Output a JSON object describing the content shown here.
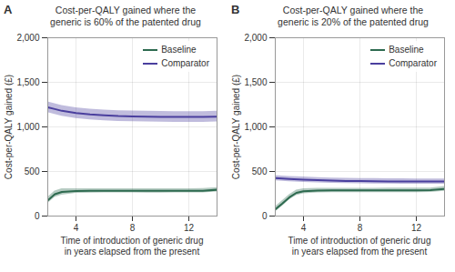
{
  "chart_data": [
    {
      "type": "line",
      "title": "Cost-per-QALY gained where the\ngeneric is 60% of the patented drug",
      "annotations": [
        "A"
      ],
      "xlabel": "Time of introduction of generic drug\nin years elapsed from the present",
      "ylabel": "Cost-per-QALY gained (£)",
      "series": [
        {
          "name": "Baseline",
          "color": "#2d6a4f",
          "x": [
            2,
            2.5,
            3,
            4,
            5,
            6,
            7,
            8,
            9,
            10,
            11,
            12,
            13,
            14
          ],
          "values": [
            175,
            245,
            270,
            280,
            282,
            283,
            283,
            283,
            282,
            282,
            283,
            283,
            284,
            295
          ],
          "lower": [
            140,
            210,
            235,
            255,
            258,
            259,
            259,
            259,
            258,
            258,
            259,
            259,
            260,
            270
          ],
          "upper": [
            210,
            280,
            305,
            305,
            306,
            307,
            307,
            307,
            306,
            306,
            307,
            307,
            308,
            320
          ]
        },
        {
          "name": "Comparator",
          "color": "#4a3f9e",
          "x": [
            2,
            2.5,
            3,
            4,
            5,
            6,
            7,
            8,
            9,
            10,
            11,
            12,
            13,
            14
          ],
          "values": [
            1220,
            1200,
            1180,
            1155,
            1140,
            1130,
            1122,
            1118,
            1115,
            1113,
            1112,
            1112,
            1112,
            1115
          ],
          "lower": [
            1160,
            1140,
            1120,
            1095,
            1080,
            1070,
            1062,
            1058,
            1055,
            1053,
            1052,
            1052,
            1052,
            1055
          ],
          "upper": [
            1280,
            1260,
            1240,
            1215,
            1200,
            1190,
            1182,
            1178,
            1175,
            1173,
            1172,
            1172,
            1172,
            1175
          ]
        }
      ],
      "xlim": [
        2,
        14
      ],
      "xticks": [
        4,
        8,
        12
      ],
      "ylim": [
        0,
        2000
      ],
      "yticks": [
        0,
        500,
        {
          "value": 1000,
          "label": "1,000"
        },
        {
          "value": 1500,
          "label": "1,500"
        },
        {
          "value": 2000,
          "label": "2,000"
        }
      ],
      "grid": true,
      "legend": "upper right"
    },
    {
      "type": "line",
      "title": "Cost-per-QALY gained where the\ngeneric is 20% of the patented drug",
      "annotations": [
        "B"
      ],
      "xlabel": "Time of introduction of generic drug\nin years elapsed from the present",
      "ylabel": "Cost-per-QALY gained (£)",
      "series": [
        {
          "name": "Baseline",
          "color": "#2d6a4f",
          "x": [
            2,
            2.5,
            3,
            3.5,
            4,
            5,
            6,
            7,
            8,
            9,
            10,
            11,
            12,
            13,
            14
          ],
          "values": [
            75,
            140,
            210,
            260,
            278,
            285,
            287,
            287,
            287,
            287,
            288,
            288,
            289,
            290,
            305
          ],
          "lower": [
            45,
            110,
            180,
            230,
            250,
            260,
            262,
            262,
            262,
            262,
            263,
            263,
            264,
            265,
            278
          ],
          "upper": [
            105,
            170,
            240,
            290,
            306,
            310,
            312,
            312,
            312,
            312,
            313,
            313,
            314,
            315,
            332
          ]
        },
        {
          "name": "Comparator",
          "color": "#4a3f9e",
          "x": [
            2,
            2.5,
            3,
            4,
            5,
            6,
            7,
            8,
            9,
            10,
            11,
            12,
            13,
            14
          ],
          "values": [
            425,
            420,
            415,
            408,
            402,
            397,
            394,
            392,
            390,
            389,
            388,
            387,
            387,
            387
          ],
          "lower": [
            395,
            390,
            385,
            378,
            372,
            367,
            364,
            362,
            360,
            359,
            358,
            357,
            357,
            357
          ],
          "upper": [
            455,
            450,
            445,
            438,
            432,
            427,
            424,
            422,
            420,
            419,
            418,
            417,
            417,
            417
          ]
        }
      ],
      "xlim": [
        2,
        14
      ],
      "xticks": [
        4,
        8,
        12
      ],
      "ylim": [
        0,
        2000
      ],
      "yticks": [
        0,
        500,
        {
          "value": 1000,
          "label": "1,000"
        },
        {
          "value": 1500,
          "label": "1,500"
        },
        {
          "value": 2000,
          "label": "2,000"
        }
      ],
      "grid": true,
      "legend": "upper right"
    }
  ]
}
